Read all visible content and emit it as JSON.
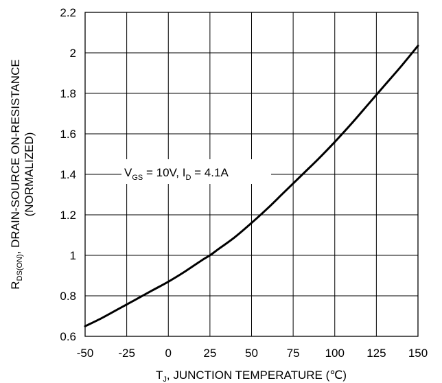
{
  "chart_data": {
    "type": "line",
    "title": "",
    "x_ticks": [
      "-50",
      "-25",
      "0",
      "25",
      "50",
      "75",
      "100",
      "125",
      "150"
    ],
    "y_ticks": [
      "0.6",
      "0.8",
      "1",
      "1.2",
      "1.4",
      "1.6",
      "1.8",
      "2",
      "2.2"
    ],
    "xlim": [
      -50,
      150
    ],
    "ylim": [
      0.6,
      2.2
    ],
    "grid": true,
    "xlabel": {
      "main": "T",
      "sub": "J",
      "rest": ", JUNCTION TEMPERATURE (℃)"
    },
    "ylabel": {
      "line1_main": "R",
      "line1_sub": "DS(ON)",
      "line1_rest": ", DRAIN-SOURCE ON-RESISTANCE",
      "line2": "(NORMALIZED)"
    },
    "annotation": {
      "v": "V",
      "v_sub": "GS",
      "mid": " = 10V, I",
      "i_sub": "D",
      "end": " = 4.1A"
    },
    "series": [
      {
        "color": "#000000",
        "x": [
          -50,
          -40,
          -30,
          -20,
          -10,
          0,
          10,
          20,
          25,
          30,
          40,
          50,
          60,
          70,
          80,
          90,
          100,
          110,
          120,
          130,
          140,
          150
        ],
        "y": [
          0.65,
          0.69,
          0.735,
          0.78,
          0.825,
          0.87,
          0.92,
          0.975,
          1.0,
          1.03,
          1.09,
          1.16,
          1.235,
          1.315,
          1.395,
          1.475,
          1.56,
          1.65,
          1.745,
          1.84,
          1.935,
          2.035
        ]
      }
    ]
  }
}
